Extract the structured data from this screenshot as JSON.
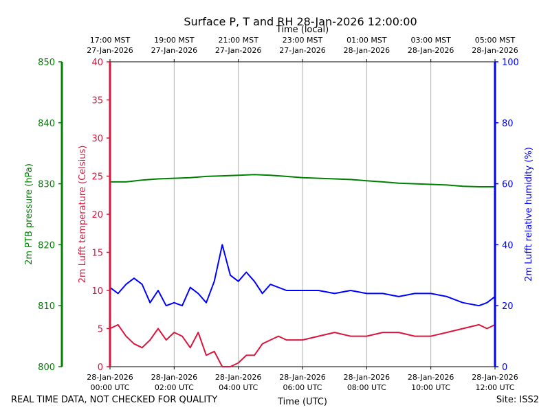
{
  "chart_data": {
    "type": "line",
    "title": "Surface P, T and RH 28-Jan-2026 12:00:00",
    "xlabel_bottom": "Time (UTC)",
    "xlabel_top": "Time (local)",
    "x_range_utc": [
      "2026-01-28 00:00",
      "2026-01-28 12:00"
    ],
    "grid_x": true,
    "bottom_ticks": [
      {
        "date": "28-Jan-2026",
        "time": "00:00 UTC"
      },
      {
        "date": "28-Jan-2026",
        "time": "02:00 UTC"
      },
      {
        "date": "28-Jan-2026",
        "time": "04:00 UTC"
      },
      {
        "date": "28-Jan-2026",
        "time": "06:00 UTC"
      },
      {
        "date": "28-Jan-2026",
        "time": "08:00 UTC"
      },
      {
        "date": "28-Jan-2026",
        "time": "10:00 UTC"
      },
      {
        "date": "28-Jan-2026",
        "time": "12:00 UTC"
      }
    ],
    "top_ticks": [
      {
        "time": "17:00 MST",
        "date": "27-Jan-2026"
      },
      {
        "time": "19:00 MST",
        "date": "27-Jan-2026"
      },
      {
        "time": "21:00 MST",
        "date": "27-Jan-2026"
      },
      {
        "time": "23:00 MST",
        "date": "27-Jan-2026"
      },
      {
        "time": "01:00 MST",
        "date": "28-Jan-2026"
      },
      {
        "time": "03:00 MST",
        "date": "28-Jan-2026"
      },
      {
        "time": "05:00 MST",
        "date": "28-Jan-2026"
      }
    ],
    "axes": {
      "pressure": {
        "label": "2m PTB pressure (hPa)",
        "color": "#008000",
        "ylim": [
          800,
          850
        ],
        "ticks": [
          800,
          810,
          820,
          830,
          840,
          850
        ]
      },
      "temperature": {
        "label": "2m Lufft temperature (Celsius)",
        "color": "#dc143c",
        "ylim": [
          0,
          40
        ],
        "ticks": [
          0,
          5,
          10,
          15,
          20,
          25,
          30,
          35,
          40
        ]
      },
      "humidity": {
        "label": "2m Lufft relative humidity (%)",
        "color": "#0000ff",
        "ylim": [
          0,
          100
        ],
        "ticks": [
          0,
          20,
          40,
          60,
          80,
          100
        ]
      }
    },
    "series": [
      {
        "name": "2m PTB pressure (hPa)",
        "axis": "pressure",
        "color": "#008000",
        "x": [
          "00:00",
          "00:30",
          "01:00",
          "01:30",
          "02:00",
          "02:30",
          "03:00",
          "03:30",
          "04:00",
          "04:30",
          "05:00",
          "05:30",
          "06:00",
          "06:30",
          "07:00",
          "07:30",
          "08:00",
          "08:30",
          "09:00",
          "09:30",
          "10:00",
          "10:30",
          "11:00",
          "11:30",
          "12:00"
        ],
        "values": [
          830.3,
          830.3,
          830.6,
          830.8,
          830.9,
          831.0,
          831.2,
          831.3,
          831.4,
          831.5,
          831.4,
          831.2,
          831.0,
          830.9,
          830.8,
          830.7,
          830.5,
          830.3,
          830.1,
          830.0,
          829.9,
          829.8,
          829.6,
          829.5,
          829.5
        ]
      },
      {
        "name": "2m Lufft temperature (Celsius)",
        "axis": "temperature",
        "color": "#dc143c",
        "x": [
          "00:00",
          "00:15",
          "00:30",
          "00:45",
          "01:00",
          "01:15",
          "01:30",
          "01:45",
          "02:00",
          "02:15",
          "02:30",
          "02:45",
          "03:00",
          "03:15",
          "03:30",
          "03:45",
          "04:00",
          "04:15",
          "04:30",
          "04:45",
          "05:00",
          "05:15",
          "05:30",
          "06:00",
          "06:30",
          "07:00",
          "07:30",
          "08:00",
          "08:30",
          "09:00",
          "09:30",
          "10:00",
          "10:30",
          "11:00",
          "11:30",
          "11:45",
          "12:00"
        ],
        "values": [
          5.0,
          5.5,
          4.0,
          3.0,
          2.5,
          3.5,
          5.0,
          3.5,
          4.5,
          4.0,
          2.5,
          4.5,
          1.5,
          2.0,
          0.0,
          -0.5,
          0.5,
          1.5,
          1.5,
          3.0,
          3.5,
          4.0,
          3.5,
          3.5,
          4.0,
          4.5,
          4.0,
          4.0,
          4.5,
          4.5,
          4.0,
          4.0,
          4.5,
          5.0,
          5.5,
          5.0,
          5.5
        ]
      },
      {
        "name": "2m Lufft relative humidity (%)",
        "axis": "humidity",
        "color": "#0000ff",
        "x": [
          "00:00",
          "00:15",
          "00:30",
          "00:45",
          "01:00",
          "01:15",
          "01:30",
          "01:45",
          "02:00",
          "02:15",
          "02:30",
          "02:45",
          "03:00",
          "03:15",
          "03:30",
          "03:45",
          "04:00",
          "04:15",
          "04:30",
          "04:45",
          "05:00",
          "05:30",
          "06:00",
          "06:30",
          "07:00",
          "07:30",
          "08:00",
          "08:30",
          "09:00",
          "09:30",
          "10:00",
          "10:30",
          "11:00",
          "11:30",
          "11:45",
          "12:00"
        ],
        "values": [
          26,
          24,
          27,
          29,
          27,
          21,
          25,
          20,
          21,
          20,
          26,
          24,
          21,
          28,
          40,
          30,
          28,
          31,
          28,
          24,
          27,
          25,
          25,
          25,
          24,
          25,
          24,
          24,
          23,
          24,
          24,
          23,
          21,
          20,
          21,
          23
        ]
      }
    ]
  },
  "footer": {
    "left": "REAL TIME DATA, NOT CHECKED FOR QUALITY",
    "right": "Site: ISS2"
  }
}
